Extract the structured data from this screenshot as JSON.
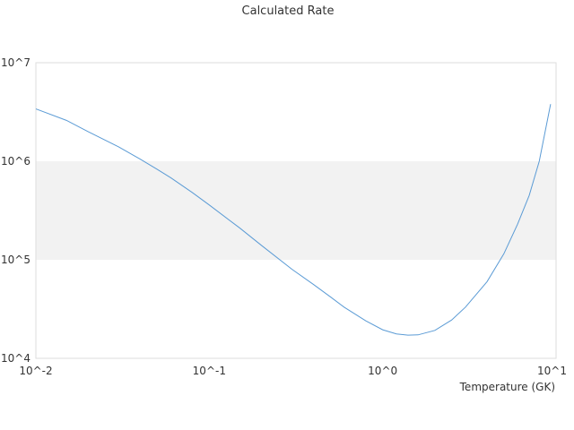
{
  "chart_data": {
    "type": "line",
    "title": "Calculated Rate",
    "xlabel": "Temperature (GK)",
    "ylabel": "",
    "x_scale": "log",
    "y_scale": "log",
    "xlim": [
      0.01,
      10
    ],
    "ylim": [
      10000,
      10000000
    ],
    "x_ticks": [
      {
        "value": 0.01,
        "label": "10^-2"
      },
      {
        "value": 0.1,
        "label": "10^-1"
      },
      {
        "value": 1,
        "label": "10^0"
      },
      {
        "value": 10,
        "label": "10^1"
      }
    ],
    "y_ticks": [
      {
        "value": 10000,
        "label": "10^4"
      },
      {
        "value": 100000,
        "label": "10^5"
      },
      {
        "value": 1000000,
        "label": "10^6"
      },
      {
        "value": 10000000,
        "label": "10^7"
      }
    ],
    "grid": false,
    "legend": "none",
    "band_color": "#f2f2f2",
    "line_color": "#5b9bd5",
    "series": [
      {
        "x": [
          0.01,
          0.015,
          0.02,
          0.03,
          0.04,
          0.05,
          0.06,
          0.08,
          0.1,
          0.15,
          0.2,
          0.3,
          0.4,
          0.5,
          0.6,
          0.8,
          1.0,
          1.2,
          1.4,
          1.6,
          2.0,
          2.5,
          3.0,
          4.0,
          5.0,
          6.0,
          7.0,
          8.0,
          9.3
        ],
        "y": [
          3400000,
          2600000,
          2000000,
          1400000,
          1050000,
          830000,
          680000,
          480000,
          360000,
          210000,
          140000,
          80000,
          56000,
          42000,
          33000,
          24000,
          19500,
          17700,
          17200,
          17300,
          19200,
          24500,
          33000,
          60000,
          115000,
          230000,
          450000,
          1000000,
          3800000
        ]
      }
    ]
  }
}
